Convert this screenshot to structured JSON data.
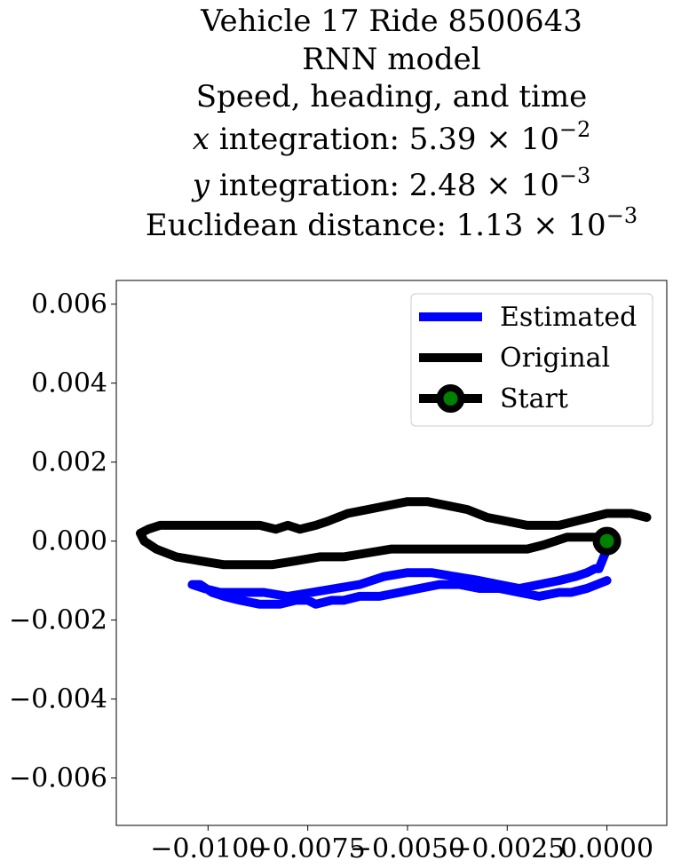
{
  "chart_data": {
    "type": "line",
    "title_lines": [
      {
        "parts": [
          {
            "t": "Vehicle 17 Ride 8500643"
          }
        ]
      },
      {
        "parts": [
          {
            "t": "RNN model"
          }
        ]
      },
      {
        "parts": [
          {
            "t": "Speed, heading, and time"
          }
        ]
      },
      {
        "parts": [
          {
            "t": "x",
            "i": true
          },
          {
            "t": " integration: 5.39 × 10"
          },
          {
            "t": "−2",
            "sup": true
          }
        ]
      },
      {
        "parts": [
          {
            "t": "y",
            "i": true
          },
          {
            "t": " integration: 2.48 × 10"
          },
          {
            "t": "−3",
            "sup": true
          }
        ]
      },
      {
        "parts": [
          {
            "t": "Euclidean distance: 1.13 × 10"
          },
          {
            "t": "−3",
            "sup": true
          }
        ]
      }
    ],
    "xlabel": "",
    "ylabel": "",
    "xlim": [
      -0.0123,
      0.0015
    ],
    "ylim": [
      -0.0072,
      0.0066
    ],
    "xticks": [
      -0.01,
      -0.0075,
      -0.005,
      -0.0025,
      0.0
    ],
    "xtick_labels": [
      "−0.0100",
      "−0.0075",
      "−0.0050",
      "−0.0025",
      "0.0000"
    ],
    "yticks": [
      0.006,
      0.004,
      0.002,
      0.0,
      -0.002,
      -0.004,
      -0.006
    ],
    "ytick_labels": [
      "0.006",
      "0.004",
      "0.002",
      "0.000",
      "−0.002",
      "−0.004",
      "−0.006"
    ],
    "grid": false,
    "legend_position": "upper right",
    "series": [
      {
        "name": "Estimated",
        "color": "#0000ff",
        "x": [
          0.0,
          -0.0005,
          -0.0009,
          -0.0012,
          -0.0017,
          -0.0022,
          -0.0027,
          -0.0032,
          -0.0037,
          -0.0042,
          -0.0047,
          -0.0052,
          -0.0057,
          -0.0062,
          -0.0066,
          -0.0069,
          -0.0073,
          -0.0075,
          -0.0078,
          -0.0082,
          -0.0087,
          -0.0092,
          -0.0096,
          -0.0099,
          -0.0102,
          -0.0104,
          -0.0101,
          -0.0097,
          -0.0092,
          -0.0086,
          -0.008,
          -0.0074,
          -0.0068,
          -0.0062,
          -0.0056,
          -0.005,
          -0.0044,
          -0.0038,
          -0.0032,
          -0.0027,
          -0.0022,
          -0.0017,
          -0.0012,
          -0.0008,
          -0.0005,
          -0.0003,
          -0.0002,
          0.0
        ],
        "y": [
          -0.001,
          -0.0012,
          -0.0013,
          -0.0013,
          -0.0014,
          -0.0013,
          -0.0012,
          -0.0012,
          -0.0011,
          -0.0011,
          -0.0012,
          -0.0013,
          -0.0014,
          -0.0014,
          -0.0015,
          -0.0015,
          -0.0016,
          -0.0015,
          -0.0015,
          -0.0016,
          -0.0016,
          -0.0015,
          -0.0014,
          -0.0013,
          -0.0011,
          -0.0011,
          -0.0012,
          -0.0013,
          -0.0013,
          -0.0013,
          -0.0014,
          -0.0013,
          -0.0012,
          -0.0011,
          -0.0009,
          -0.0008,
          -0.0008,
          -0.0009,
          -0.001,
          -0.0011,
          -0.0012,
          -0.0011,
          -0.001,
          -0.0009,
          -0.0008,
          -0.0007,
          -0.0007,
          -0.0002
        ]
      },
      {
        "name": "Original",
        "color": "#000000",
        "x": [
          0.001,
          0.0006,
          0.0003,
          0.0,
          -0.0004,
          -0.0008,
          -0.0012,
          -0.0016,
          -0.002,
          -0.0025,
          -0.003,
          -0.0035,
          -0.004,
          -0.0045,
          -0.005,
          -0.0055,
          -0.006,
          -0.0065,
          -0.007,
          -0.0073,
          -0.0077,
          -0.008,
          -0.0083,
          -0.0087,
          -0.0092,
          -0.0097,
          -0.0102,
          -0.0107,
          -0.0112,
          -0.0115,
          -0.0117,
          -0.0116,
          -0.0113,
          -0.0108,
          -0.0102,
          -0.0096,
          -0.009,
          -0.0084,
          -0.0078,
          -0.0072,
          -0.0066,
          -0.006,
          -0.0054,
          -0.0048,
          -0.0042,
          -0.0036,
          -0.003,
          -0.0025,
          -0.002,
          -0.0016,
          -0.0013,
          -0.001,
          -0.0007,
          -0.0004,
          -0.0001,
          0.0
        ],
        "y": [
          0.0006,
          0.0007,
          0.0007,
          0.0007,
          0.0006,
          0.0005,
          0.0004,
          0.0004,
          0.0004,
          0.0005,
          0.0006,
          0.0008,
          0.0009,
          0.001,
          0.001,
          0.0009,
          0.0008,
          0.0007,
          0.0005,
          0.0004,
          0.0003,
          0.0004,
          0.0003,
          0.0004,
          0.0004,
          0.0004,
          0.0004,
          0.0004,
          0.0004,
          0.0003,
          0.0002,
          0.0,
          -0.0002,
          -0.0004,
          -0.0005,
          -0.0006,
          -0.0006,
          -0.0006,
          -0.0005,
          -0.0004,
          -0.0004,
          -0.0003,
          -0.0002,
          -0.0002,
          -0.0002,
          -0.0002,
          -0.0002,
          -0.0002,
          -0.0002,
          -0.0001,
          0.0,
          0.0001,
          0.0001,
          0.0001,
          0.0001,
          0.0
        ]
      }
    ],
    "marker": {
      "name": "Start",
      "x": 0.0,
      "y": 0.0,
      "edge_color": "#000000",
      "face_color": "#008000"
    },
    "legend": [
      {
        "label": "Estimated",
        "kind": "line",
        "color": "#0000ff"
      },
      {
        "label": "Original",
        "kind": "line",
        "color": "#000000"
      },
      {
        "label": "Start",
        "kind": "marker",
        "color": "#000000",
        "face_color": "#008000"
      }
    ]
  }
}
